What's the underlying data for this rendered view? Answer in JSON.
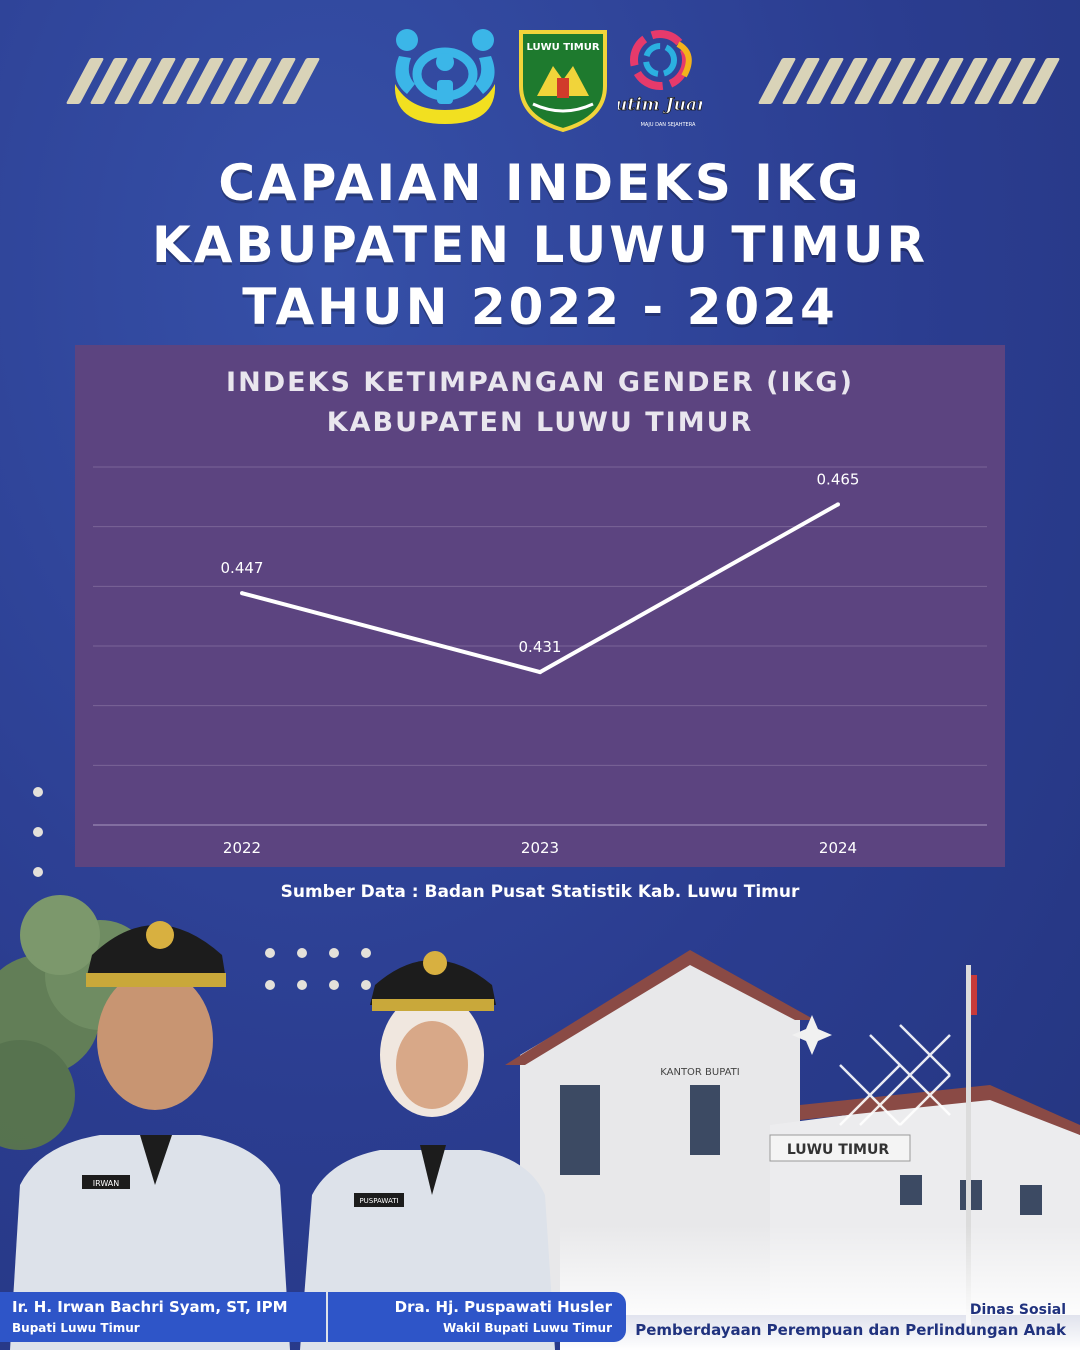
{
  "header": {
    "title_lines": [
      "CAPAIAN INDEKS IKG",
      "KABUPATEN LUWU TIMUR",
      "TAHUN 2022 - 2024"
    ],
    "logos": [
      "child-protection-logo",
      "luwu-timur-emblem",
      "lutim-juara-logo"
    ],
    "emblem_text": "LUWU TIMUR",
    "brand_logo_text": "Lutim Juara",
    "brand_logo_tagline": "MAJU DAN SEJAHTERA"
  },
  "chart_data": {
    "type": "line",
    "title_lines": [
      "INDEKS KETIMPANGAN GENDER (IKG)",
      "KABUPATEN LUWU TIMUR"
    ],
    "categories": [
      "2022",
      "2023",
      "2024"
    ],
    "values": [
      0.447,
      0.431,
      0.465
    ],
    "data_labels": [
      "0.447",
      "0.431",
      "0.465"
    ],
    "ylim": [
      0.4,
      0.475
    ],
    "grid": true,
    "line_color": "#ffffff",
    "background_color": "#5c4480"
  },
  "source_text": "Sumber Data : Badan Pusat Statistik Kab. Luwu Timur",
  "building_signs": [
    "KANTOR BUPATI",
    "LUWU TIMUR"
  ],
  "officials": [
    {
      "name": "Ir. H. Irwan Bachri Syam, ST, IPM",
      "role": "Bupati Luwu Timur",
      "badge": "IRWAN"
    },
    {
      "name": "Dra. Hj. Puspawati Husler",
      "role": "Wakil Bupati Luwu Timur",
      "badge": "PUSPAWATI"
    }
  ],
  "department": {
    "line1": "Dinas Sosial",
    "line2": "Pemberdayaan Perempuan dan Perlindungan Anak"
  },
  "colors": {
    "background": "#2c3f93",
    "stripes": "#d9d3b8",
    "chart_panel": "#5c4480",
    "name_card": "#2e55c8",
    "department_text": "#20327e"
  }
}
